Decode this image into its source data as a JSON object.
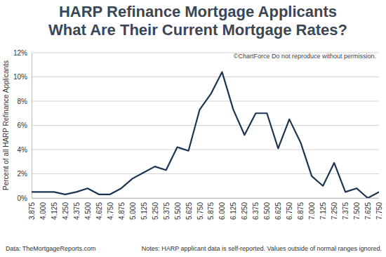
{
  "chart_data": {
    "type": "line",
    "title": "HARP Refinance Mortgage Applicants",
    "subtitle": "What Are Their Current Mortgage Rates?",
    "annotation": "©ChartForce  Do not reproduce without permission.",
    "y_label": "Percent of all HARP Refinance Applicants",
    "source": "Data: TheMortgageReports.com",
    "notes": "Notes: HARP applicant data is self-reported. Values outside of normal ranges ignored.",
    "categories": [
      "3.875",
      "4.000",
      "4.125",
      "4.250",
      "4.375",
      "4.500",
      "4.625",
      "4.750",
      "4.875",
      "5.000",
      "5.125",
      "5.250",
      "5.375",
      "5.500",
      "5.625",
      "5.750",
      "5.875",
      "6.000",
      "6.125",
      "6.250",
      "6.375",
      "6.500",
      "6.625",
      "6.750",
      "6.875",
      "7.000",
      "7.125",
      "7.250",
      "7.375",
      "7.500",
      "7.625",
      "7.750"
    ],
    "values": [
      0.5,
      0.5,
      0.5,
      0.3,
      0.5,
      0.8,
      0.3,
      0.3,
      0.8,
      1.6,
      2.1,
      2.6,
      2.3,
      4.2,
      3.9,
      7.3,
      8.6,
      10.4,
      7.3,
      5.2,
      7.0,
      7.0,
      4.1,
      6.5,
      4.6,
      1.8,
      1.0,
      2.9,
      0.5,
      0.8,
      0.0,
      0.5
    ],
    "color": "#1c3553",
    "ylim": [
      0,
      12
    ],
    "yticks": [
      {
        "value": 0,
        "label": "0%"
      },
      {
        "value": 2,
        "label": "2%"
      },
      {
        "value": 4,
        "label": "4%"
      },
      {
        "value": 6,
        "label": "6%"
      },
      {
        "value": 8,
        "label": "8%"
      },
      {
        "value": 10,
        "label": "10%"
      },
      {
        "value": 12,
        "label": "12%"
      }
    ],
    "grid": true
  }
}
